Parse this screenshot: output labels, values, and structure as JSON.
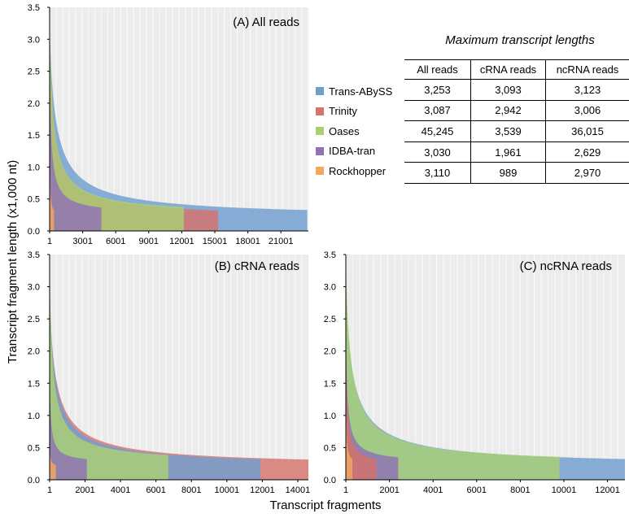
{
  "figure": {
    "y_axis_title": "Transcript fragment length (x1,000 nt)",
    "x_axis_title": "Transcript fragments"
  },
  "legend": [
    {
      "name": "Trans-ABySS",
      "color": "#6f9ecf"
    },
    {
      "name": "Trinity",
      "color": "#d5736c"
    },
    {
      "name": "Oases",
      "color": "#a9cf74"
    },
    {
      "name": "IDBA-tran",
      "color": "#8e72b5"
    },
    {
      "name": "Rockhopper",
      "color": "#f2a85e"
    }
  ],
  "table": {
    "title": "Maximum transcript lengths",
    "columns": [
      "All reads",
      "cRNA reads",
      "ncRNA reads"
    ],
    "rows": [
      [
        "3,253",
        "3,093",
        "3,123"
      ],
      [
        "3,087",
        "2,942",
        "3,006"
      ],
      [
        "45,245",
        "3,539",
        "36,015"
      ],
      [
        "3,030",
        "1,961",
        "2,629"
      ],
      [
        "3,110",
        "989",
        "2,970"
      ]
    ]
  },
  "chart_data": [
    {
      "type": "area",
      "title": "(A) All reads",
      "ylim": [
        0,
        3.5
      ],
      "yticks": [
        "0.0",
        "0.5",
        "1.0",
        "1.5",
        "2.0",
        "2.5",
        "3.0",
        "3.5"
      ],
      "xlim": [
        1,
        23500
      ],
      "xticks": [
        1,
        3001,
        6001,
        9001,
        12001,
        15001,
        18001,
        21001
      ],
      "grid": true,
      "series": [
        {
          "name": "Trans-ABySS",
          "color": "#6f9ecf",
          "n": 23400,
          "max": 3.253,
          "min": 0.2
        },
        {
          "name": "Trinity",
          "color": "#d5736c",
          "n": 15300,
          "max": 3.087,
          "min": 0.2
        },
        {
          "name": "Oases",
          "color": "#a9cf74",
          "n": 12200,
          "max": 3.5,
          "min": 0.24
        },
        {
          "name": "IDBA-tran",
          "color": "#8e72b5",
          "n": 4700,
          "max": 3.03,
          "min": 0.25
        },
        {
          "name": "Rockhopper",
          "color": "#f2a85e",
          "n": 400,
          "max": 3.11,
          "min": 0.2
        }
      ]
    },
    {
      "type": "area",
      "title": "(B) cRNA reads",
      "ylim": [
        0,
        3.5
      ],
      "yticks": [
        "0.0",
        "0.5",
        "1.0",
        "1.5",
        "2.0",
        "2.5",
        "3.0",
        "3.5"
      ],
      "xlim": [
        1,
        14600
      ],
      "xticks": [
        1,
        2001,
        4001,
        6001,
        8001,
        10001,
        12001,
        14001
      ],
      "grid": true,
      "series": [
        {
          "name": "Trinity",
          "color": "#d5736c",
          "n": 14600,
          "max": 2.942,
          "min": 0.2
        },
        {
          "name": "Trans-ABySS",
          "color": "#6f9ecf",
          "n": 11900,
          "max": 3.093,
          "min": 0.2
        },
        {
          "name": "Oases",
          "color": "#a9cf74",
          "n": 6700,
          "max": 3.5,
          "min": 0.25
        },
        {
          "name": "IDBA-tran",
          "color": "#8e72b5",
          "n": 2100,
          "max": 1.961,
          "min": 0.25
        },
        {
          "name": "Rockhopper",
          "color": "#f2a85e",
          "n": 350,
          "max": 0.989,
          "min": 0.2
        }
      ]
    },
    {
      "type": "area",
      "title": "(C) ncRNA reads",
      "ylim": [
        0,
        3.5
      ],
      "yticks": [
        "0.0",
        "0.5",
        "1.0",
        "1.5",
        "2.0",
        "2.5",
        "3.0",
        "3.5"
      ],
      "xlim": [
        1,
        12800
      ],
      "xticks": [
        1,
        2001,
        4001,
        6001,
        8001,
        10001,
        12001
      ],
      "grid": true,
      "series": [
        {
          "name": "Trans-ABySS",
          "color": "#6f9ecf",
          "n": 12800,
          "max": 3.123,
          "min": 0.2
        },
        {
          "name": "Oases",
          "color": "#a9cf74",
          "n": 9800,
          "max": 3.5,
          "min": 0.22
        },
        {
          "name": "IDBA-tran",
          "color": "#8e72b5",
          "n": 2400,
          "max": 2.629,
          "min": 0.25
        },
        {
          "name": "Trinity",
          "color": "#d5736c",
          "n": 1400,
          "max": 3.006,
          "min": 0.2
        },
        {
          "name": "Rockhopper",
          "color": "#f2a85e",
          "n": 300,
          "max": 2.97,
          "min": 0.2
        }
      ]
    }
  ]
}
